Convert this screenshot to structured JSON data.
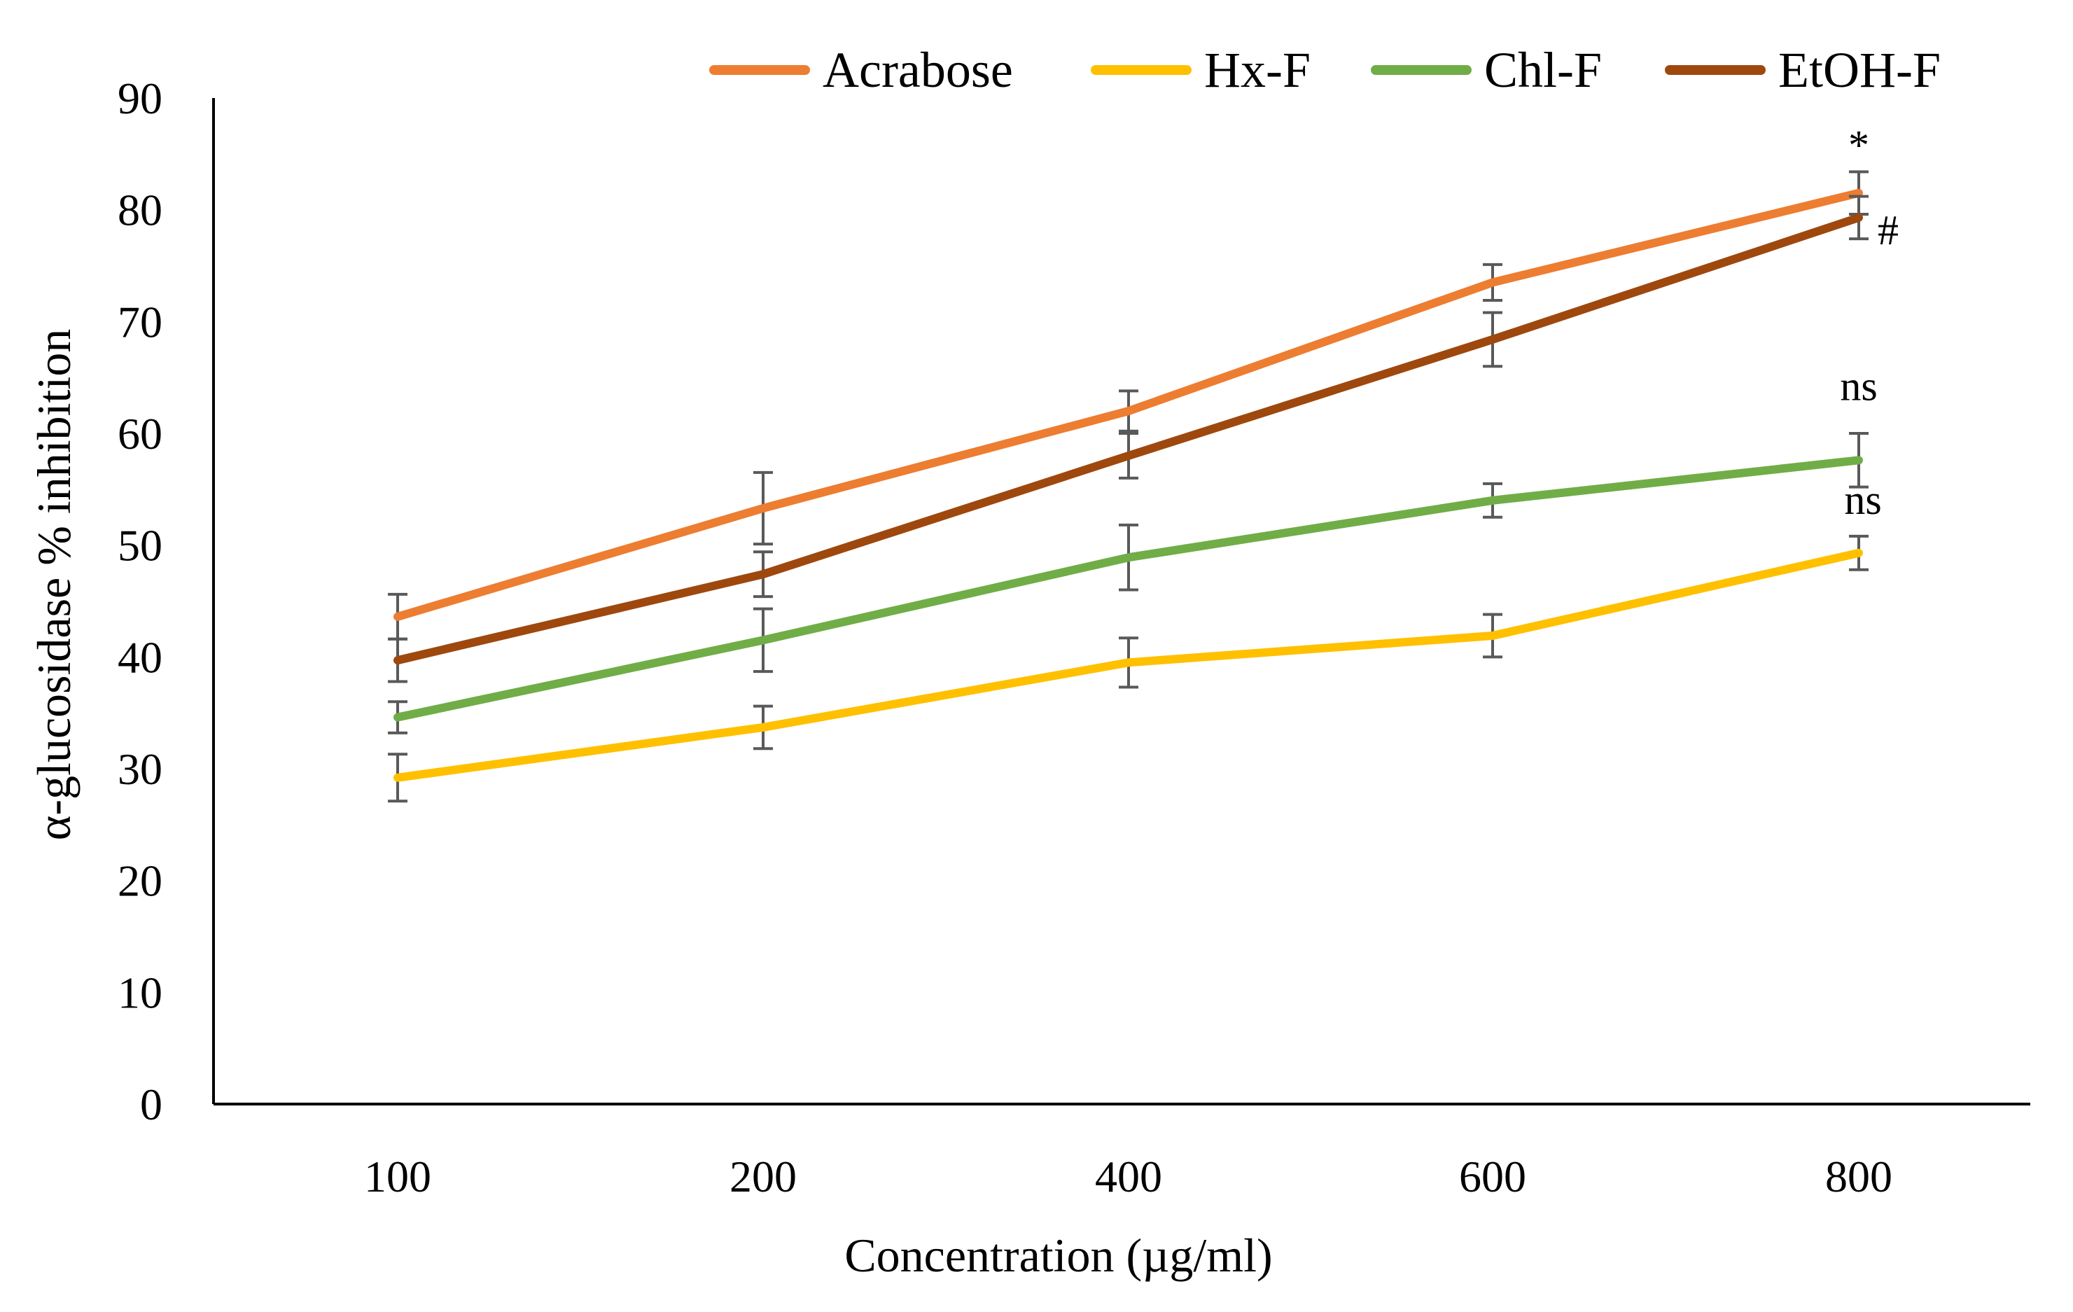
{
  "chart_data": {
    "type": "line",
    "title": "",
    "xlabel": "Concentration (µg/ml)",
    "ylabel": "α-glucosidase % inhibition",
    "categories": [
      "100",
      "200",
      "400",
      "600",
      "800"
    ],
    "ylim": [
      0,
      90
    ],
    "yticks": [
      "0",
      "10",
      "20",
      "30",
      "40",
      "50",
      "60",
      "70",
      "80",
      "90"
    ],
    "grid": false,
    "legend_position": "top",
    "series": [
      {
        "name": "Acrabose",
        "color": "#ED7D31",
        "values": [
          43.6,
          53.3,
          62.0,
          73.5,
          81.5
        ],
        "errors": [
          2.0,
          3.2,
          1.8,
          1.6,
          1.9
        ]
      },
      {
        "name": "Hx-F",
        "color": "#FFC000",
        "values": [
          29.2,
          33.7,
          39.5,
          41.9,
          49.3
        ],
        "errors": [
          2.1,
          1.9,
          2.2,
          1.9,
          1.5
        ]
      },
      {
        "name": "Chl-F",
        "color": "#70AD47",
        "values": [
          34.6,
          41.5,
          48.9,
          54.0,
          57.6
        ],
        "errors": [
          1.4,
          2.8,
          2.9,
          1.5,
          2.4
        ]
      },
      {
        "name": "EtOH-F",
        "color": "#9E480E",
        "values": [
          39.7,
          47.4,
          58.0,
          68.4,
          79.3
        ],
        "errors": [
          1.9,
          2.0,
          2.0,
          2.4,
          1.9
        ]
      }
    ],
    "annotations": [
      {
        "text": "*",
        "series": "Acrabose",
        "category": "800"
      },
      {
        "text": "#",
        "series": "EtOH-F",
        "category": "800"
      },
      {
        "text": "ns",
        "series": "Chl-F",
        "category": "800"
      },
      {
        "text": "ns",
        "series": "Hx-F",
        "category": "800"
      }
    ]
  }
}
